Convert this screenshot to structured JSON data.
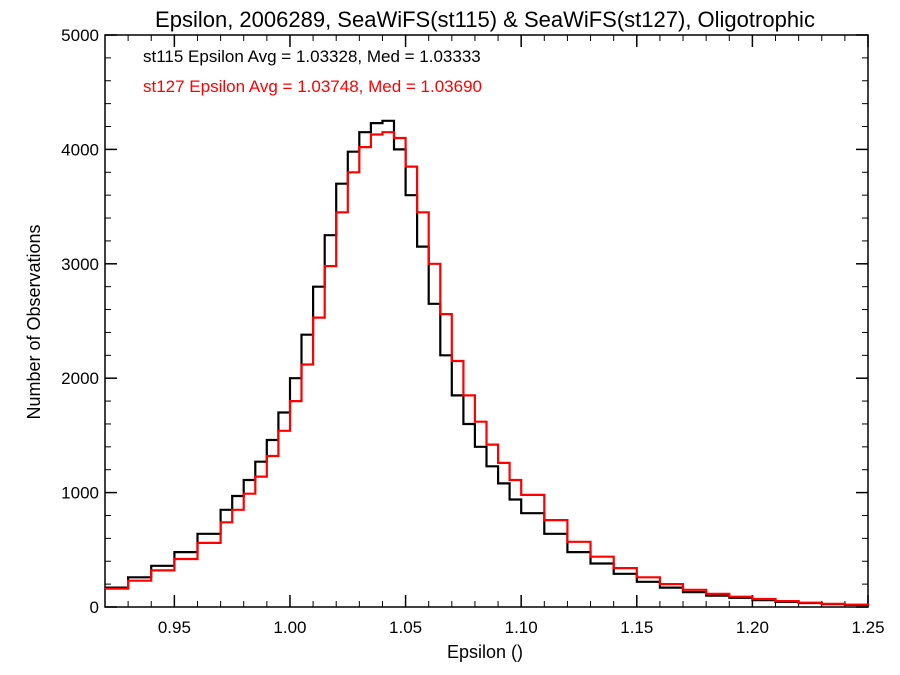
{
  "chart_data": {
    "type": "line",
    "title": "Epsilon, 2006289, SeaWiFS(st115) & SeaWiFS(st127), Oligotrophic",
    "xlabel": "Epsilon ()",
    "ylabel": "Number of Observations",
    "xlim": [
      0.92,
      1.25
    ],
    "ylim": [
      0,
      5000
    ],
    "xticks": [
      0.95,
      1.0,
      1.05,
      1.1,
      1.15,
      1.2,
      1.25
    ],
    "xtick_labels": [
      "0.95",
      "1.00",
      "1.05",
      "1.10",
      "1.15",
      "1.20",
      "1.25"
    ],
    "yticks": [
      0,
      1000,
      2000,
      3000,
      4000,
      5000
    ],
    "ytick_labels": [
      "0",
      "1000",
      "2000",
      "3000",
      "4000",
      "5000"
    ],
    "grid": false,
    "legend_placement": "top-left",
    "series": [
      {
        "legend_text": "st115 Epsilon Avg = 1.03328, Med = 1.03333",
        "color": "#000000",
        "style": "step",
        "x": [
          0.92,
          0.93,
          0.94,
          0.95,
          0.96,
          0.97,
          0.975,
          0.98,
          0.985,
          0.99,
          0.995,
          1.0,
          1.005,
          1.01,
          1.015,
          1.02,
          1.025,
          1.03,
          1.035,
          1.04,
          1.045,
          1.05,
          1.055,
          1.06,
          1.065,
          1.07,
          1.075,
          1.08,
          1.085,
          1.09,
          1.095,
          1.1,
          1.11,
          1.12,
          1.13,
          1.14,
          1.15,
          1.16,
          1.17,
          1.18,
          1.19,
          1.2,
          1.21,
          1.22,
          1.23,
          1.24,
          1.25
        ],
        "y": [
          170,
          260,
          360,
          480,
          640,
          850,
          970,
          1110,
          1270,
          1460,
          1700,
          2000,
          2380,
          2800,
          3250,
          3700,
          3980,
          4150,
          4230,
          4250,
          4000,
          3600,
          3150,
          2650,
          2200,
          1850,
          1600,
          1400,
          1230,
          1080,
          940,
          820,
          640,
          480,
          380,
          290,
          220,
          170,
          130,
          100,
          80,
          60,
          45,
          35,
          25,
          18,
          12
        ]
      },
      {
        "legend_text": "st127 Epsilon Avg = 1.03748, Med = 1.03690",
        "color": "#ff0000",
        "style": "step",
        "x": [
          0.92,
          0.93,
          0.94,
          0.95,
          0.96,
          0.97,
          0.975,
          0.98,
          0.985,
          0.99,
          0.995,
          1.0,
          1.005,
          1.01,
          1.015,
          1.02,
          1.025,
          1.03,
          1.035,
          1.04,
          1.045,
          1.05,
          1.055,
          1.06,
          1.065,
          1.07,
          1.075,
          1.08,
          1.085,
          1.09,
          1.095,
          1.1,
          1.11,
          1.12,
          1.13,
          1.14,
          1.15,
          1.16,
          1.17,
          1.18,
          1.19,
          1.2,
          1.21,
          1.22,
          1.23,
          1.24,
          1.25
        ],
        "y": [
          160,
          230,
          320,
          420,
          560,
          740,
          850,
          990,
          1140,
          1320,
          1540,
          1800,
          2120,
          2530,
          2980,
          3450,
          3800,
          4020,
          4130,
          4150,
          4100,
          3850,
          3450,
          3000,
          2560,
          2150,
          1850,
          1620,
          1420,
          1260,
          1110,
          980,
          760,
          570,
          440,
          340,
          260,
          200,
          150,
          115,
          90,
          70,
          52,
          38,
          28,
          20,
          14
        ]
      }
    ]
  }
}
